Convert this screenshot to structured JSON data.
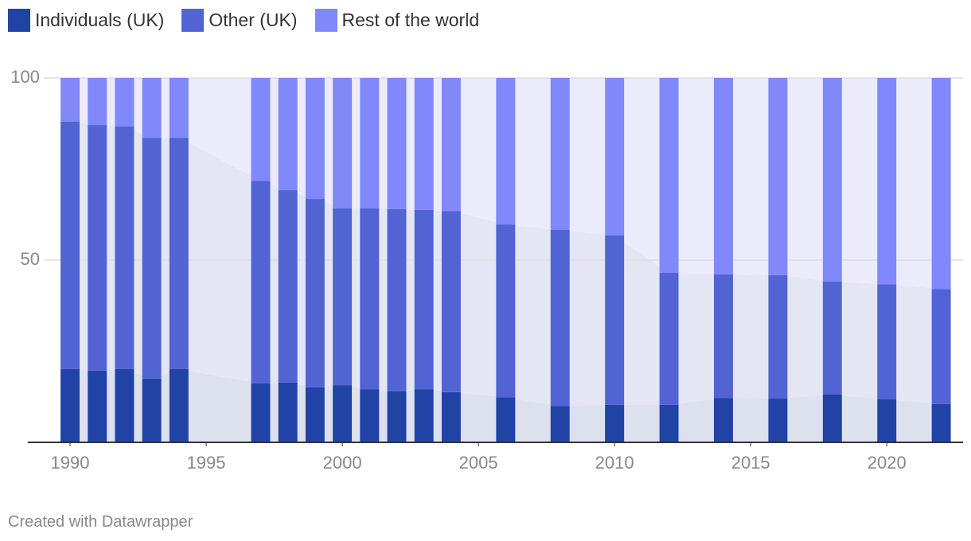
{
  "chart_data": {
    "type": "stacked-bar",
    "x": [
      1990,
      1991,
      1992,
      1993,
      1994,
      1997,
      1998,
      1999,
      2000,
      2001,
      2002,
      2003,
      2004,
      2006,
      2008,
      2010,
      2012,
      2014,
      2016,
      2018,
      2020,
      2022
    ],
    "series": [
      {
        "name": "Individuals (UK)",
        "color": "#2243a6",
        "area_color": "#dde1ee",
        "values": [
          20.1,
          19.7,
          20.1,
          17.5,
          20.1,
          16.2,
          16.4,
          15.1,
          15.7,
          14.6,
          14.0,
          14.6,
          13.8,
          12.4,
          10.0,
          10.3,
          10.3,
          12.2,
          12.0,
          13.1,
          11.8,
          10.5
        ]
      },
      {
        "name": "Other (UK)",
        "color": "#5264d4",
        "area_color": "#e4e6f4",
        "values": [
          67.9,
          67.4,
          66.6,
          66.1,
          63.5,
          55.6,
          52.8,
          51.7,
          48.5,
          49.6,
          50.0,
          49.2,
          49.7,
          47.4,
          48.3,
          46.5,
          36.2,
          33.9,
          33.9,
          31.0,
          31.6,
          31.6
        ]
      },
      {
        "name": "Rest of the world",
        "color": "#8088fa",
        "area_color": "#ebebfb",
        "values": [
          12.0,
          12.9,
          13.3,
          16.4,
          16.4,
          28.2,
          30.8,
          33.2,
          35.8,
          35.8,
          36.0,
          36.2,
          36.5,
          40.2,
          41.7,
          43.2,
          53.5,
          53.9,
          54.1,
          55.9,
          56.6,
          57.9
        ]
      }
    ],
    "xlim": [
      1988.45,
      2022.8
    ],
    "xticks": [
      1990,
      1995,
      2000,
      2005,
      2010,
      2015,
      2020
    ],
    "ylim": [
      0,
      100
    ],
    "yticks": [
      50,
      100
    ],
    "grid": true,
    "credit": "Created with Datawrapper"
  }
}
